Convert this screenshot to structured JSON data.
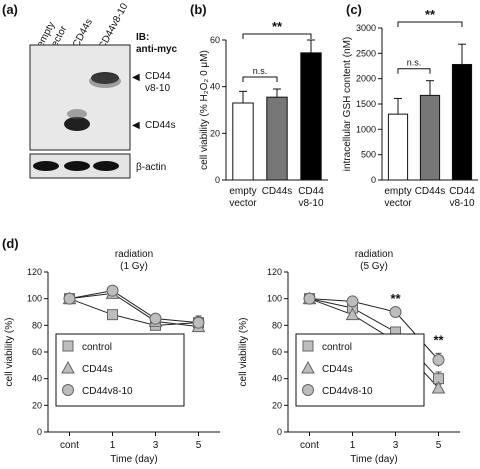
{
  "panels": {
    "a": {
      "label": "(a)",
      "lanes": [
        "empty vector",
        "CD44s",
        "CD44v8-10"
      ],
      "ib_line1": "IB:",
      "ib_line2": "anti-myc",
      "band1_line1": "CD44",
      "band1_line2": "v8-10",
      "band2": "CD44s",
      "loading": "β-actin",
      "arrow1": "◀",
      "arrow2": "◀"
    }
  },
  "chart_data": [
    {
      "id": "b",
      "panel_label": "(b)",
      "type": "bar",
      "categories": [
        "empty vector",
        "CD44s",
        "CD44 v8-10"
      ],
      "values": [
        33,
        35.5,
        54.5
      ],
      "errors": [
        5,
        3.5,
        5.5
      ],
      "colors": [
        "#ffffff",
        "#777777",
        "#000000"
      ],
      "ylabel": "cell viability (% H₂O₂ 0 μM)",
      "ylim": [
        0,
        60
      ],
      "yticks": [
        0,
        20,
        40,
        60
      ],
      "annotations": [
        {
          "text": "n.s.",
          "from": 0,
          "to": 1
        },
        {
          "text": "**",
          "from": 0,
          "to": 2
        }
      ]
    },
    {
      "id": "c",
      "panel_label": "(c)",
      "type": "bar",
      "categories": [
        "empty vector",
        "CD44s",
        "CD44 v8-10"
      ],
      "values": [
        1300,
        1670,
        2280
      ],
      "errors": [
        310,
        290,
        400
      ],
      "colors": [
        "#ffffff",
        "#777777",
        "#000000"
      ],
      "ylabel": "intracellular GSH content (nM)",
      "ylim": [
        0,
        3000
      ],
      "yticks": [
        0,
        500,
        1000,
        1500,
        2000,
        2500,
        3000
      ],
      "annotations": [
        {
          "text": "n.s.",
          "from": 0,
          "to": 1
        },
        {
          "text": "**",
          "from": 0,
          "to": 2
        }
      ]
    },
    {
      "id": "d1",
      "panel_label": "(d)",
      "type": "line",
      "title_line1": "radiation",
      "title_line2": "(1 Gy)",
      "x": [
        "cont",
        "1",
        "3",
        "5"
      ],
      "xlabel": "Time (day)",
      "ylabel": "cell viability (%)",
      "ylim": [
        0,
        120
      ],
      "yticks": [
        0,
        20,
        40,
        60,
        80,
        100,
        120
      ],
      "series": [
        {
          "name": "control",
          "marker": "square",
          "values": [
            100,
            88,
            80,
            82
          ],
          "errors": [
            0,
            0,
            0,
            4
          ]
        },
        {
          "name": "CD44s",
          "marker": "triangle",
          "values": [
            100,
            104,
            83,
            79
          ],
          "errors": [
            0,
            0,
            0,
            3
          ]
        },
        {
          "name": "CD44v8-10",
          "marker": "circle",
          "values": [
            100,
            106,
            85,
            82
          ],
          "errors": [
            0,
            0,
            0,
            5
          ]
        }
      ]
    },
    {
      "id": "d2",
      "type": "line",
      "title_line1": "radiation",
      "title_line2": "(5 Gy)",
      "x": [
        "cont",
        "1",
        "3",
        "5"
      ],
      "xlabel": "Time (day)",
      "ylabel": "cell viability (%)",
      "ylim": [
        0,
        120
      ],
      "yticks": [
        0,
        20,
        40,
        60,
        80,
        100,
        120
      ],
      "series": [
        {
          "name": "control",
          "marker": "square",
          "values": [
            100,
            93,
            75,
            40
          ],
          "errors": [
            0,
            0,
            0,
            5
          ]
        },
        {
          "name": "CD44s",
          "marker": "triangle",
          "values": [
            100,
            88,
            68,
            33
          ],
          "errors": [
            0,
            0,
            0,
            3
          ]
        },
        {
          "name": "CD44v8-10",
          "marker": "circle",
          "values": [
            100,
            98,
            90,
            54
          ],
          "errors": [
            0,
            0,
            0,
            5
          ]
        }
      ],
      "annotations": [
        {
          "text": "**",
          "x_index": 2
        },
        {
          "text": "**",
          "x_index": 3
        }
      ]
    }
  ]
}
